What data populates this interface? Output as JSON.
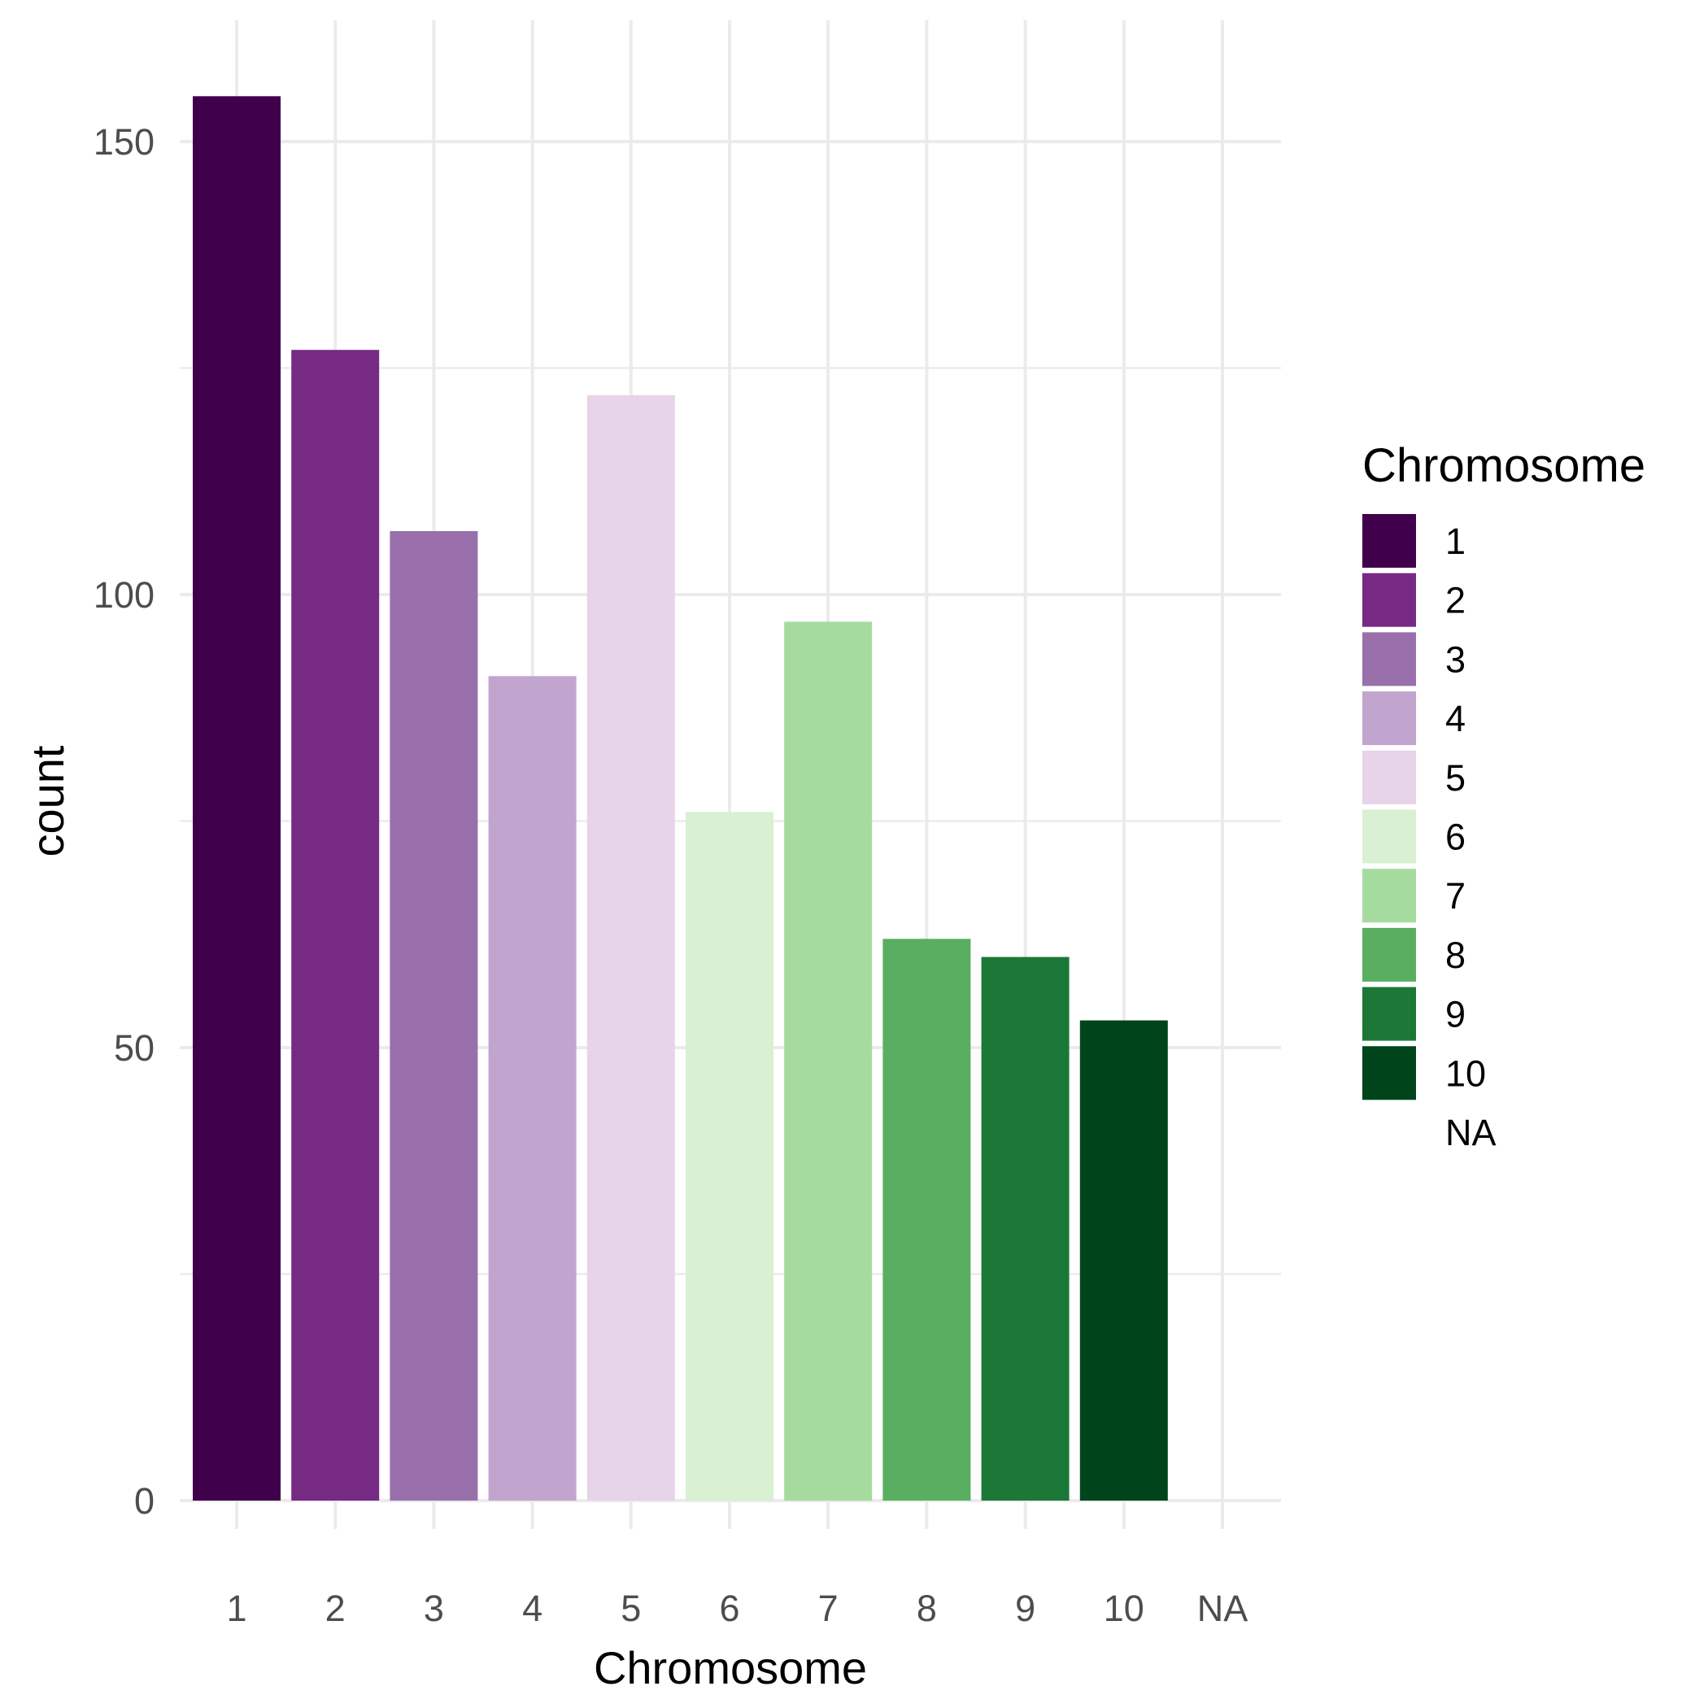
{
  "chart_data": {
    "type": "bar",
    "xlabel": "Chromosome",
    "ylabel": "count",
    "categories": [
      "1",
      "2",
      "3",
      "4",
      "5",
      "6",
      "7",
      "8",
      "9",
      "10",
      "NA"
    ],
    "values": [
      155,
      127,
      107,
      91,
      122,
      76,
      97,
      62,
      60,
      53,
      0
    ],
    "colors": [
      "#40004b",
      "#762a83",
      "#9970ab",
      "#c2a5cf",
      "#e7d4e8",
      "#d9f0d3",
      "#a6dba0",
      "#5aae61",
      "#1b7837",
      "#00441b",
      "#ffffff"
    ],
    "ylim": [
      0,
      160
    ],
    "yticks": [
      0,
      50,
      100,
      150
    ],
    "ytick_labels": [
      "0",
      "50",
      "100",
      "150"
    ],
    "grid": true,
    "legend": {
      "title": "Chromosome",
      "position": "right",
      "entries": [
        "1",
        "2",
        "3",
        "4",
        "5",
        "6",
        "7",
        "8",
        "9",
        "10",
        "NA"
      ]
    }
  }
}
